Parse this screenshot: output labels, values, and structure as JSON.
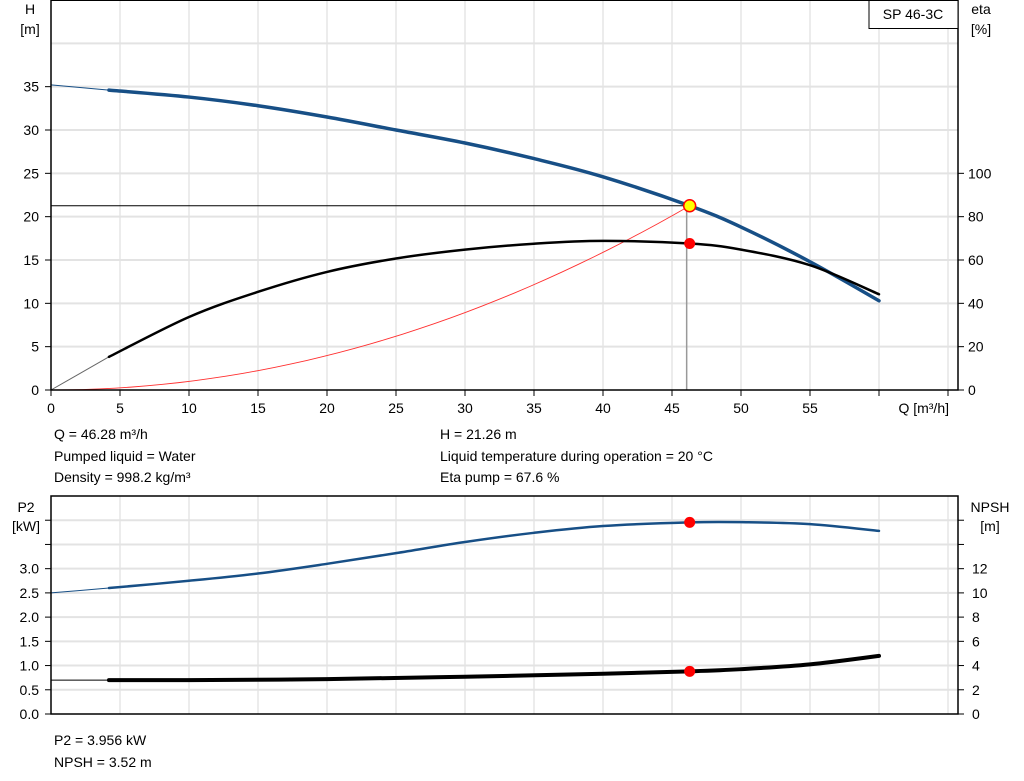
{
  "chart_data": [
    {
      "type": "line",
      "title": "",
      "legend_label": "SP 46-3C",
      "xlabel": "Q [m³/h]",
      "ylabel_left": {
        "name": "H",
        "unit": "[m]"
      },
      "ylabel_right": {
        "name": "eta",
        "unit": "[%]"
      },
      "xlim": [
        0,
        65
      ],
      "ylim_left": [
        0,
        45
      ],
      "ylim_right": [
        0,
        180
      ],
      "x_ticks": [
        0,
        5,
        10,
        15,
        20,
        25,
        30,
        35,
        40,
        45,
        50,
        55
      ],
      "x_ticks_unlabeled": [
        60,
        65
      ],
      "y_ticks_left": [
        0,
        5,
        10,
        15,
        20,
        25,
        30,
        35
      ],
      "y_ticks_right": [
        0,
        20,
        40,
        60,
        80,
        100
      ],
      "grid": true,
      "series": [
        {
          "key": "H",
          "axis": "left",
          "color": "#174f86",
          "extension": [
            [
              0,
              35.2
            ],
            [
              4.2,
              34.6
            ]
          ],
          "points": [
            [
              4.2,
              34.6
            ],
            [
              10,
              33.8
            ],
            [
              15,
              32.8
            ],
            [
              20,
              31.5
            ],
            [
              25,
              30.0
            ],
            [
              30,
              28.5
            ],
            [
              35,
              26.7
            ],
            [
              40,
              24.6
            ],
            [
              46.28,
              21.26
            ],
            [
              50,
              18.8
            ],
            [
              55,
              14.8
            ],
            [
              60,
              10.3
            ]
          ]
        },
        {
          "key": "eta",
          "axis": "right",
          "color": "#000000",
          "extension": [
            [
              0,
              0
            ],
            [
              4.2,
              15.3
            ]
          ],
          "points": [
            [
              4.2,
              15.3
            ],
            [
              10,
              33.7
            ],
            [
              15,
              45.3
            ],
            [
              20,
              54.5
            ],
            [
              25,
              60.7
            ],
            [
              30,
              64.8
            ],
            [
              35,
              67.5
            ],
            [
              40,
              68.8
            ],
            [
              46.28,
              67.6
            ],
            [
              50,
              64.8
            ],
            [
              55,
              57.6
            ],
            [
              60,
              44.2
            ]
          ]
        },
        {
          "key": "system-curve",
          "axis": "left",
          "color": "#ff3030",
          "type": "parabola",
          "to": [
            46.28,
            21.26
          ]
        }
      ],
      "duty_point": {
        "Q": 46.28,
        "H": 21.26,
        "eta": 67.6,
        "marker_color": "#ffff00",
        "marker_edge": "#ff0000",
        "eta_marker_color": "#ff0000"
      }
    },
    {
      "type": "line",
      "title": "",
      "ylabel_left": {
        "name": "P2",
        "unit": "[kW]"
      },
      "ylabel_right": {
        "name": "NPSH",
        "unit": "[m]"
      },
      "xlim": [
        0,
        65
      ],
      "ylim_left": [
        0,
        4.5
      ],
      "ylim_right": [
        0,
        18
      ],
      "y_ticks_left": [
        "0.0",
        "0.5",
        "1.0",
        "1.5",
        "2.0",
        "2.5",
        "3.0"
      ],
      "y_ticks_left_unlabeled": [
        3.5,
        4.0
      ],
      "y_ticks_right": [
        0,
        2,
        4,
        6,
        8,
        10,
        12
      ],
      "y_ticks_right_unlabeled": [
        14,
        16
      ],
      "grid": true,
      "series": [
        {
          "key": "P2",
          "axis": "left",
          "color": "#174f86",
          "extension": [
            [
              0,
              2.5
            ],
            [
              4.2,
              2.6
            ]
          ],
          "points": [
            [
              4.2,
              2.6
            ],
            [
              10,
              2.75
            ],
            [
              15,
              2.9
            ],
            [
              20,
              3.1
            ],
            [
              25,
              3.32
            ],
            [
              30,
              3.55
            ],
            [
              35,
              3.74
            ],
            [
              40,
              3.88
            ],
            [
              46.28,
              3.956
            ],
            [
              50,
              3.96
            ],
            [
              55,
              3.92
            ],
            [
              60,
              3.78
            ]
          ]
        },
        {
          "key": "NPSH",
          "axis": "right",
          "color": "#000000",
          "extension": [
            [
              0,
              2.8
            ],
            [
              4.2,
              2.8
            ]
          ],
          "points": [
            [
              4.2,
              2.8
            ],
            [
              10,
              2.8
            ],
            [
              20,
              2.88
            ],
            [
              30,
              3.08
            ],
            [
              40,
              3.32
            ],
            [
              46.28,
              3.52
            ],
            [
              50,
              3.7
            ],
            [
              55,
              4.1
            ],
            [
              60,
              4.8
            ]
          ]
        }
      ],
      "duty_point": {
        "Q": 46.28,
        "P2": 3.956,
        "NPSH": 3.52,
        "marker_color": "#ff0000"
      }
    }
  ],
  "info_top": {
    "q": "Q = 46.28 m³/h",
    "liquid": "Pumped liquid = Water",
    "density": "Density = 998.2 kg/m³",
    "h": "H = 21.26 m",
    "temperature": "Liquid temperature during operation = 20 °C",
    "eta": "Eta pump = 67.6 %"
  },
  "info_bottom": {
    "p2": "P2 = 3.956 kW",
    "npsh": "NPSH = 3.52 m"
  }
}
